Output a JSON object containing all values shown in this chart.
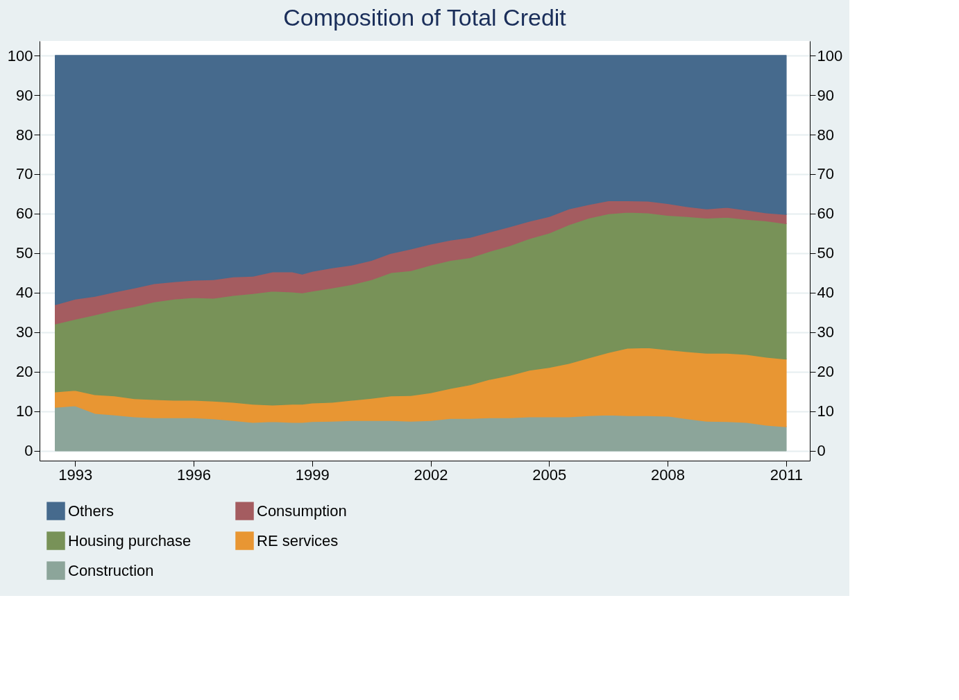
{
  "chart_data": {
    "type": "area",
    "stacked": true,
    "title": "Composition of Total Credit",
    "x": [
      1992.5,
      1993,
      1993.5,
      1994,
      1994.5,
      1995,
      1995.5,
      1996,
      1996.5,
      1997,
      1997.5,
      1998,
      1998.5,
      1998.75,
      1999,
      1999.5,
      2000,
      2000.5,
      2001,
      2001.5,
      2002,
      2002.5,
      2003,
      2003.5,
      2004,
      2004.5,
      2005,
      2005.5,
      2006,
      2006.5,
      2007,
      2007.5,
      2008,
      2008.5,
      2009,
      2009.5,
      2010,
      2010.5,
      2011
    ],
    "series": [
      {
        "name": "Construction",
        "color": "#8ca59a",
        "values": [
          11.0,
          11.4,
          9.5,
          9.1,
          8.6,
          8.4,
          8.4,
          8.4,
          8.1,
          7.7,
          7.2,
          7.4,
          7.2,
          7.2,
          7.4,
          7.5,
          7.7,
          7.7,
          7.7,
          7.5,
          7.7,
          8.2,
          8.2,
          8.4,
          8.4,
          8.6,
          8.6,
          8.6,
          8.9,
          9.1,
          8.9,
          8.9,
          8.8,
          8.1,
          7.5,
          7.4,
          7.2,
          6.5,
          6.1
        ]
      },
      {
        "name": "RE services",
        "color": "#e89633",
        "values": [
          3.9,
          3.9,
          4.7,
          4.8,
          4.6,
          4.6,
          4.4,
          4.4,
          4.5,
          4.6,
          4.6,
          4.2,
          4.6,
          4.6,
          4.7,
          4.8,
          5.1,
          5.6,
          6.2,
          6.5,
          7.0,
          7.6,
          8.5,
          9.7,
          10.7,
          11.8,
          12.5,
          13.5,
          14.6,
          15.8,
          17.1,
          17.2,
          16.8,
          17.0,
          17.2,
          17.3,
          17.2,
          17.2,
          17.1
        ]
      },
      {
        "name": "Housing purchase",
        "color": "#789258",
        "values": [
          17.2,
          18.0,
          20.2,
          21.7,
          23.3,
          24.7,
          25.6,
          26.0,
          26.0,
          27.0,
          28.0,
          28.8,
          28.4,
          28.2,
          28.3,
          28.9,
          29.3,
          30.0,
          31.2,
          31.6,
          32.3,
          32.4,
          32.2,
          32.4,
          32.8,
          33.3,
          34.0,
          35.1,
          35.4,
          35.1,
          34.4,
          34.1,
          34.0,
          34.2,
          34.2,
          34.4,
          34.2,
          34.5,
          34.3
        ]
      },
      {
        "name": "Consumption",
        "color": "#a45c60",
        "values": [
          4.9,
          5.1,
          4.7,
          4.6,
          4.7,
          4.6,
          4.4,
          4.4,
          4.7,
          4.7,
          4.4,
          4.9,
          5.1,
          4.7,
          5.0,
          5.1,
          4.9,
          4.9,
          4.9,
          5.5,
          5.3,
          5.1,
          5.1,
          4.9,
          4.8,
          4.4,
          4.2,
          4.0,
          3.4,
          3.3,
          2.9,
          3.0,
          3.0,
          2.5,
          2.3,
          2.5,
          2.3,
          2.0,
          2.3
        ]
      },
      {
        "name": "Others",
        "color": "#466a8d",
        "values": [
          63.0,
          61.6,
          60.9,
          59.8,
          58.8,
          57.7,
          57.2,
          56.8,
          56.7,
          56.0,
          55.8,
          54.7,
          54.7,
          55.3,
          54.6,
          53.7,
          53.0,
          51.8,
          50.0,
          48.9,
          47.7,
          46.7,
          46.0,
          44.6,
          43.3,
          41.9,
          40.7,
          38.8,
          37.7,
          36.7,
          36.7,
          36.8,
          37.4,
          38.2,
          38.8,
          38.4,
          39.1,
          39.8,
          40.2
        ]
      }
    ],
    "xlim": [
      1992.1,
      2011.6
    ],
    "xticks": [
      1993,
      1996,
      1999,
      2002,
      2005,
      2008,
      2011
    ],
    "ylim": [
      -2.5,
      103.7
    ],
    "yticks": [
      0,
      10,
      20,
      30,
      40,
      50,
      60,
      70,
      80,
      90,
      100
    ],
    "y2lim": [
      -2.5,
      103.7
    ],
    "y2ticks": [
      0,
      10,
      20,
      30,
      40,
      50,
      60,
      70,
      80,
      90,
      100
    ],
    "grid": "y",
    "legend": "bottom"
  }
}
